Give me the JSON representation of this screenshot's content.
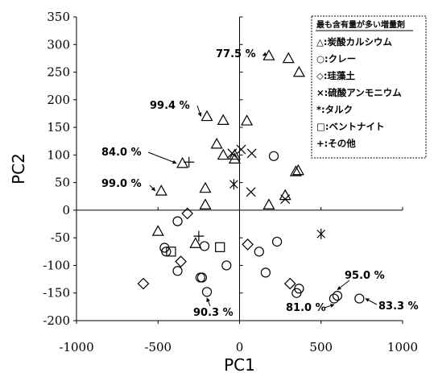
{
  "chart_data": {
    "type": "scatter",
    "xlabel": "PC1",
    "ylabel": "PC2",
    "xlim": [
      -1000,
      1000
    ],
    "ylim": [
      -200,
      350
    ],
    "xticks": [
      -1000,
      -500,
      0,
      500,
      1000
    ],
    "yticks": [
      -200,
      -150,
      -100,
      -50,
      0,
      50,
      100,
      150,
      200,
      250,
      300,
      350
    ],
    "grid": false,
    "legend": {
      "title": "最も含有量が多い増量剤",
      "placement": "top-right",
      "entries": [
        {
          "key": "calcium",
          "marker": "triangle",
          "label": "△:炭酸カルシウム"
        },
        {
          "key": "clay",
          "marker": "circle",
          "label": "○:クレー"
        },
        {
          "key": "diatom",
          "marker": "diamond",
          "label": "◇:珪藻土"
        },
        {
          "key": "ammonium",
          "marker": "x",
          "label": "×:硫酸アンモニウム"
        },
        {
          "key": "talc",
          "marker": "asterisk",
          "label": "*:タルク"
        },
        {
          "key": "bentonite",
          "marker": "square",
          "label": "□:ベントナイト"
        },
        {
          "key": "other",
          "marker": "plus",
          "label": "+:その他"
        }
      ]
    },
    "series": [
      {
        "key": "calcium",
        "marker": "triangle",
        "points": [
          [
            180,
            280
          ],
          [
            300,
            275
          ],
          [
            365,
            250
          ],
          [
            -200,
            170
          ],
          [
            -100,
            163
          ],
          [
            45,
            162
          ],
          [
            -140,
            120
          ],
          [
            -100,
            100
          ],
          [
            -30,
            93
          ],
          [
            -30,
            100
          ],
          [
            -350,
            85
          ],
          [
            -210,
            40
          ],
          [
            -210,
            10
          ],
          [
            -480,
            35
          ],
          [
            345,
            70
          ],
          [
            360,
            72
          ],
          [
            180,
            10
          ],
          [
            280,
            27
          ],
          [
            -500,
            -38
          ],
          [
            -270,
            -60
          ]
        ]
      },
      {
        "key": "clay",
        "marker": "circle",
        "points": [
          [
            210,
            98
          ],
          [
            -380,
            -20
          ],
          [
            -460,
            -68
          ],
          [
            -450,
            -75
          ],
          [
            -215,
            -65
          ],
          [
            -380,
            -110
          ],
          [
            -240,
            -122
          ],
          [
            -230,
            -122
          ],
          [
            -80,
            -100
          ],
          [
            230,
            -57
          ],
          [
            120,
            -75
          ],
          [
            160,
            -113
          ],
          [
            350,
            -150
          ],
          [
            365,
            -142
          ],
          [
            -200,
            -148
          ],
          [
            580,
            -160
          ],
          [
            600,
            -155
          ],
          [
            735,
            -160
          ]
        ]
      },
      {
        "key": "diatom",
        "marker": "diamond",
        "points": [
          [
            -320,
            -6
          ],
          [
            -360,
            -93
          ],
          [
            50,
            -62
          ],
          [
            310,
            -133
          ],
          [
            -590,
            -133
          ]
        ]
      },
      {
        "key": "ammonium",
        "marker": "x",
        "points": [
          [
            -45,
            103
          ],
          [
            10,
            110
          ],
          [
            75,
            103
          ],
          [
            70,
            33
          ],
          [
            280,
            20
          ]
        ]
      },
      {
        "key": "talc",
        "marker": "asterisk",
        "points": [
          [
            -35,
            47
          ],
          [
            500,
            -43
          ]
        ]
      },
      {
        "key": "bentonite",
        "marker": "square",
        "points": [
          [
            -420,
            -75
          ],
          [
            -120,
            -67
          ]
        ]
      },
      {
        "key": "other",
        "marker": "plus",
        "points": [
          [
            -310,
            87
          ],
          [
            -250,
            -47
          ]
        ]
      }
    ],
    "annotations": [
      {
        "text": "77.5 %",
        "x": 180,
        "y": 280
      },
      {
        "text": "99.4 %",
        "x": -200,
        "y": 170
      },
      {
        "text": "84.0 %",
        "x": -350,
        "y": 85
      },
      {
        "text": "99.0 %",
        "x": -480,
        "y": 35
      },
      {
        "text": "95.0 %",
        "x": 600,
        "y": -155
      },
      {
        "text": "81.0 %",
        "x": 580,
        "y": -160
      },
      {
        "text": "83.3 %",
        "x": 735,
        "y": -160
      },
      {
        "text": "90.3 %",
        "x": -200,
        "y": -148
      }
    ]
  }
}
